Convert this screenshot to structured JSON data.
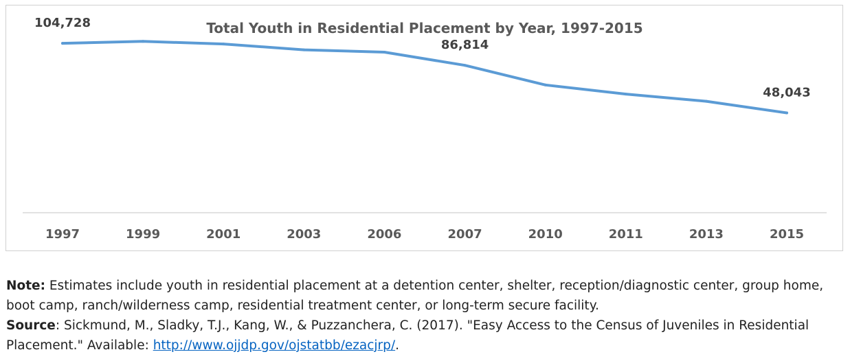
{
  "chart_data": {
    "type": "line",
    "title": "Total Youth in Residential Placement by Year, 1997-2015",
    "categories": [
      "1997",
      "1999",
      "2001",
      "2003",
      "2006",
      "2007",
      "2010",
      "2011",
      "2013",
      "2015"
    ],
    "series": [
      {
        "values": [
          104728,
          106300,
          104200,
          99400,
          97500,
          86814,
          70800,
          63400,
          57500,
          48043
        ],
        "color": "#5b9bd5"
      }
    ],
    "data_labels": [
      {
        "index": 0,
        "text": "104,728"
      },
      {
        "index": 5,
        "text": "86,814"
      },
      {
        "index": 9,
        "text": "48,043"
      }
    ],
    "ylim": [
      0,
      140000
    ],
    "grid": false,
    "legend": "none",
    "axis_color": "#d9d9d9"
  },
  "notes": {
    "note_label": "Note:",
    "note_text": " Estimates include youth in residential placement at a detention center, shelter, reception/diagnostic center, group home, boot camp, ranch/wilderness camp, residential treatment center, or long-term secure facility.",
    "source_label": "Source",
    "source_text": ": Sickmund, M., Sladky, T.J., Kang, W., & Puzzanchera, C. (2017). \"Easy Access to the Census of Juveniles in Residential Placement.\" Available: ",
    "source_link": "http://www.ojjdp.gov/ojstatbb/ezacjrp/",
    "source_end": "."
  }
}
